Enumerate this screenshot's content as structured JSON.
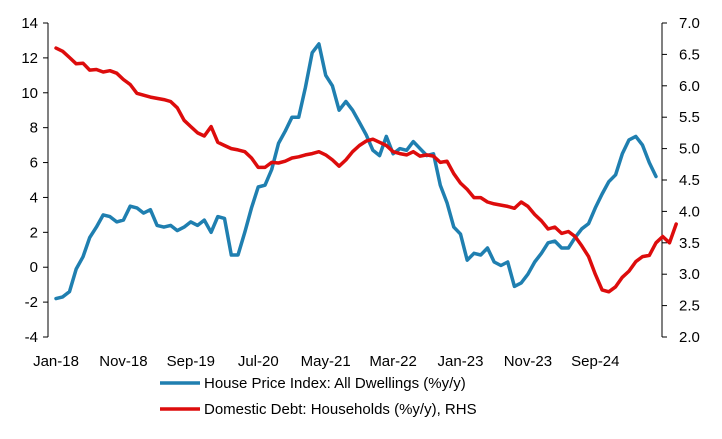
{
  "colors": {
    "series_hpi": "#1f7fb0",
    "series_debt": "#dd0c0c",
    "axis": "#000000",
    "background": "#ffffff"
  },
  "chart_data": {
    "type": "line",
    "title": "",
    "xlabel": "",
    "ylabel": "",
    "ylabel_right": "",
    "ylim": [
      -4,
      14
    ],
    "y_ticks": [
      -4,
      -2,
      0,
      2,
      4,
      6,
      8,
      10,
      12,
      14
    ],
    "y_tick_labels": [
      "-4",
      "-2",
      "0",
      "2",
      "4",
      "6",
      "8",
      "10",
      "12",
      "14"
    ],
    "y2lim": [
      2.0,
      7.0
    ],
    "y2_ticks": [
      2.0,
      2.5,
      3.0,
      3.5,
      4.0,
      4.5,
      5.0,
      5.5,
      6.0,
      6.5,
      7.0
    ],
    "y2_tick_labels": [
      "2.0",
      "2.5",
      "3.0",
      "3.5",
      "4.0",
      "4.5",
      "5.0",
      "5.5",
      "6.0",
      "6.5",
      "7.0"
    ],
    "x_start": "Jan-18",
    "x_end": "Apr-25",
    "x_tick_labels": [
      "Jan-18",
      "Nov-18",
      "Sep-19",
      "Jul-20",
      "May-21",
      "Mar-22",
      "Jan-23",
      "Nov-23",
      "Sep-24"
    ],
    "grid": false,
    "legend_position": "bottom",
    "series": [
      {
        "name": "House Price Index: All Dwellings (%y/y)",
        "axis": "left",
        "values": [
          -1.8,
          -1.7,
          -1.4,
          -0.1,
          0.6,
          1.7,
          2.3,
          3.0,
          2.9,
          2.6,
          2.7,
          3.5,
          3.4,
          3.1,
          3.3,
          2.4,
          2.3,
          2.4,
          2.1,
          2.3,
          2.6,
          2.4,
          2.7,
          2.0,
          2.9,
          2.8,
          0.7,
          0.7,
          2.0,
          3.4,
          4.6,
          4.7,
          5.6,
          7.1,
          7.8,
          8.6,
          8.6,
          10.3,
          12.3,
          12.8,
          11.0,
          10.4,
          9.0,
          9.5,
          9.0,
          8.3,
          7.6,
          6.7,
          6.4,
          7.5,
          6.5,
          6.8,
          6.7,
          7.2,
          6.8,
          6.4,
          6.5,
          4.7,
          3.7,
          2.3,
          1.9,
          0.4,
          0.8,
          0.7,
          1.1,
          0.3,
          0.1,
          0.3,
          -1.1,
          -0.9,
          -0.4,
          0.3,
          0.8,
          1.4,
          1.5,
          1.1,
          1.1,
          1.7,
          2.2,
          2.5,
          3.4,
          4.2,
          4.9,
          5.3,
          6.5,
          7.3,
          7.5,
          7.0,
          6.0,
          5.2
        ]
      },
      {
        "name": "Domestic Debt: Households (%y/y), RHS",
        "axis": "right",
        "values": [
          6.6,
          6.55,
          6.45,
          6.35,
          6.36,
          6.25,
          6.26,
          6.22,
          6.24,
          6.2,
          6.1,
          6.02,
          5.88,
          5.85,
          5.82,
          5.8,
          5.78,
          5.75,
          5.65,
          5.45,
          5.35,
          5.25,
          5.2,
          5.35,
          5.1,
          5.05,
          5.0,
          4.98,
          4.95,
          4.85,
          4.7,
          4.7,
          4.78,
          4.77,
          4.8,
          4.85,
          4.87,
          4.9,
          4.92,
          4.95,
          4.9,
          4.82,
          4.72,
          4.82,
          4.95,
          5.05,
          5.12,
          5.15,
          5.1,
          5.05,
          4.95,
          4.92,
          4.9,
          4.95,
          4.88,
          4.9,
          4.88,
          4.78,
          4.8,
          4.6,
          4.45,
          4.35,
          4.22,
          4.22,
          4.15,
          4.12,
          4.1,
          4.08,
          4.05,
          4.15,
          4.08,
          3.95,
          3.85,
          3.72,
          3.75,
          3.65,
          3.68,
          3.6,
          3.45,
          3.28,
          3.0,
          2.75,
          2.72,
          2.8,
          2.95,
          3.05,
          3.2,
          3.28,
          3.3,
          3.5,
          3.6,
          3.5,
          3.8
        ]
      }
    ]
  }
}
